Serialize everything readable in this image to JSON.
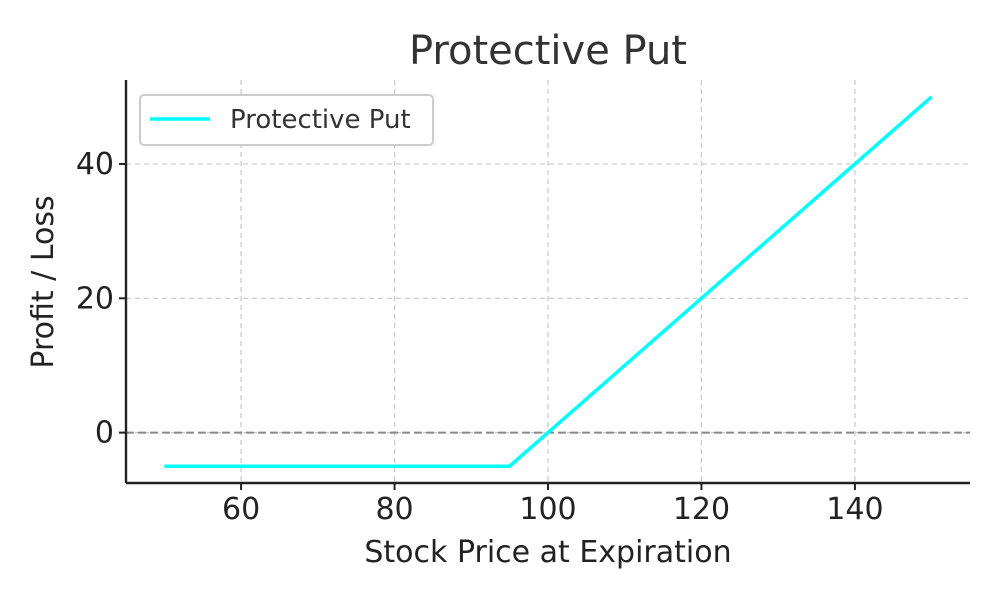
{
  "chart_data": {
    "type": "line",
    "title": "Protective Put",
    "xlabel": "Stock Price at Expiration",
    "ylabel": "Profit / Loss",
    "xlim": [
      45,
      155
    ],
    "ylim": [
      -7.5,
      52.5
    ],
    "xticks": [
      60,
      80,
      100,
      120,
      140
    ],
    "yticks": [
      0,
      20,
      40
    ],
    "grid": true,
    "legend_position": "top-left",
    "series": [
      {
        "name": "Protective Put",
        "color": "#00ffff",
        "x": [
          50,
          95,
          150
        ],
        "y": [
          -5,
          -5,
          50
        ]
      }
    ],
    "annotations": [
      {
        "type": "horizontal-reference-line",
        "y": 0,
        "color": "#888888",
        "style": "dashed"
      }
    ]
  }
}
